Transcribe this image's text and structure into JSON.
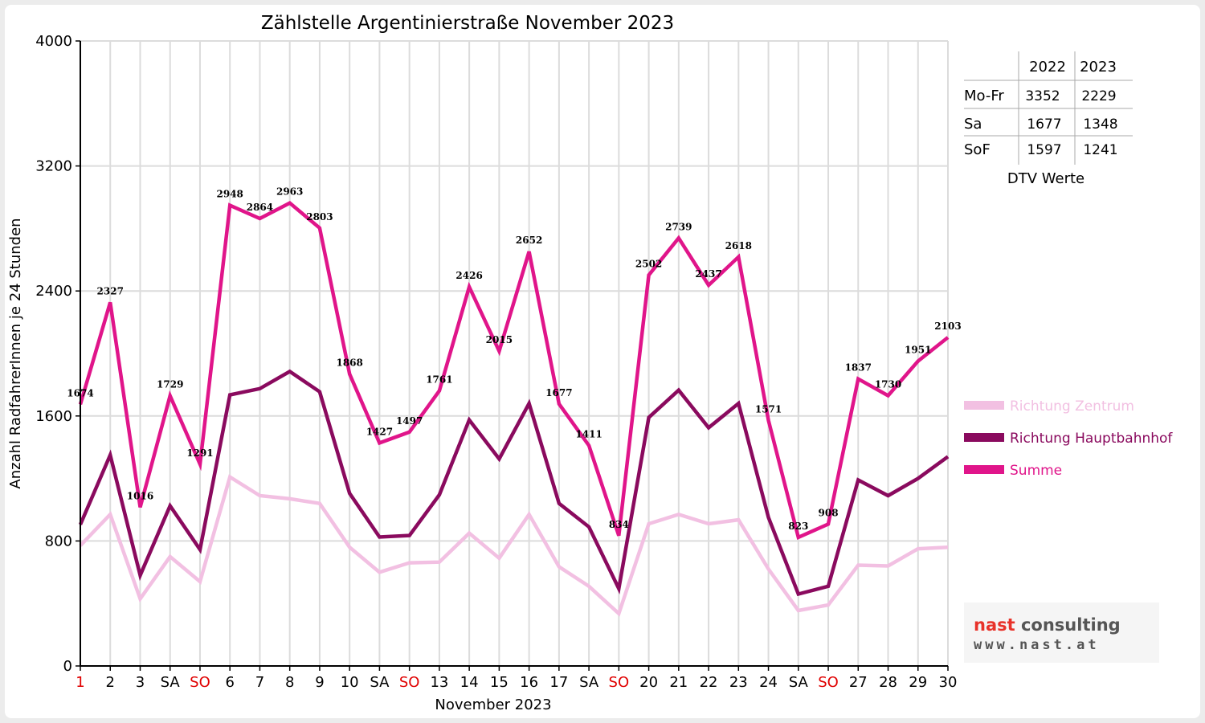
{
  "chart_data": {
    "type": "line",
    "title": "Zählstelle Argentinierstraße November 2023",
    "xlabel": "November 2023",
    "ylabel": "Anzahl RadfahrerInnen je 24 Stunden",
    "ylim": [
      0,
      4000
    ],
    "yticks": [
      0,
      800,
      1600,
      2400,
      3200,
      4000
    ],
    "grid": true,
    "legend_position": "right",
    "categories": [
      "1",
      "2",
      "3",
      "SA",
      "SO",
      "6",
      "7",
      "8",
      "9",
      "10",
      "SA",
      "SO",
      "13",
      "14",
      "15",
      "16",
      "17",
      "SA",
      "SO",
      "20",
      "21",
      "22",
      "23",
      "24",
      "SA",
      "SO",
      "27",
      "28",
      "29",
      "30"
    ],
    "red_categories": [
      0,
      4,
      11,
      18,
      25
    ],
    "series": [
      {
        "name": "Richtung Zentrum",
        "color": "#f2c0e2",
        "values": [
          770,
          970,
          430,
          700,
          540,
          1210,
          1090,
          1070,
          1040,
          760,
          600,
          660,
          665,
          850,
          690,
          970,
          635,
          510,
          335,
          910,
          970,
          910,
          935,
          620,
          355,
          390,
          645,
          640,
          750,
          760
        ]
      },
      {
        "name": "Richtung Hauptbahnhof",
        "color": "#8a0a5e",
        "values": [
          905,
          1350,
          580,
          1025,
          745,
          1735,
          1775,
          1885,
          1755,
          1105,
          825,
          835,
          1095,
          1575,
          1325,
          1680,
          1040,
          890,
          495,
          1590,
          1765,
          1525,
          1680,
          950,
          460,
          510,
          1190,
          1090,
          1200,
          1340
        ]
      },
      {
        "name": "Summe",
        "color": "#e0158a",
        "values": [
          1674,
          2327,
          1016,
          1729,
          1291,
          2948,
          2864,
          2963,
          2803,
          1868,
          1427,
          1497,
          1761,
          2426,
          2015,
          2652,
          1677,
          1411,
          834,
          2502,
          2739,
          2437,
          2618,
          1571,
          823,
          908,
          1837,
          1730,
          1951,
          2103
        ]
      }
    ],
    "data_labels": [
      "1674",
      "2327",
      "1016",
      "1729",
      "1291",
      "2948",
      "2864",
      "2963",
      "2803",
      "1868",
      "1427",
      "1497",
      "1761",
      "2426",
      "2015",
      "2652",
      "1677",
      "1411",
      "834",
      "2502",
      "2739",
      "2437",
      "2618",
      "1571",
      "823",
      "908",
      "1837",
      "1730",
      "1951",
      "2103"
    ]
  },
  "dtv_table": {
    "caption": "DTV Werte",
    "headers": [
      "",
      "2022",
      "2023"
    ],
    "rows": [
      [
        "Mo-Fr",
        "3352",
        "2229"
      ],
      [
        "Sa",
        "1677",
        "1348"
      ],
      [
        "SoF",
        "1597",
        "1241"
      ]
    ]
  },
  "logo": {
    "name_part1": "nast",
    "name_part2": "consulting",
    "url": "www.nast.at"
  }
}
